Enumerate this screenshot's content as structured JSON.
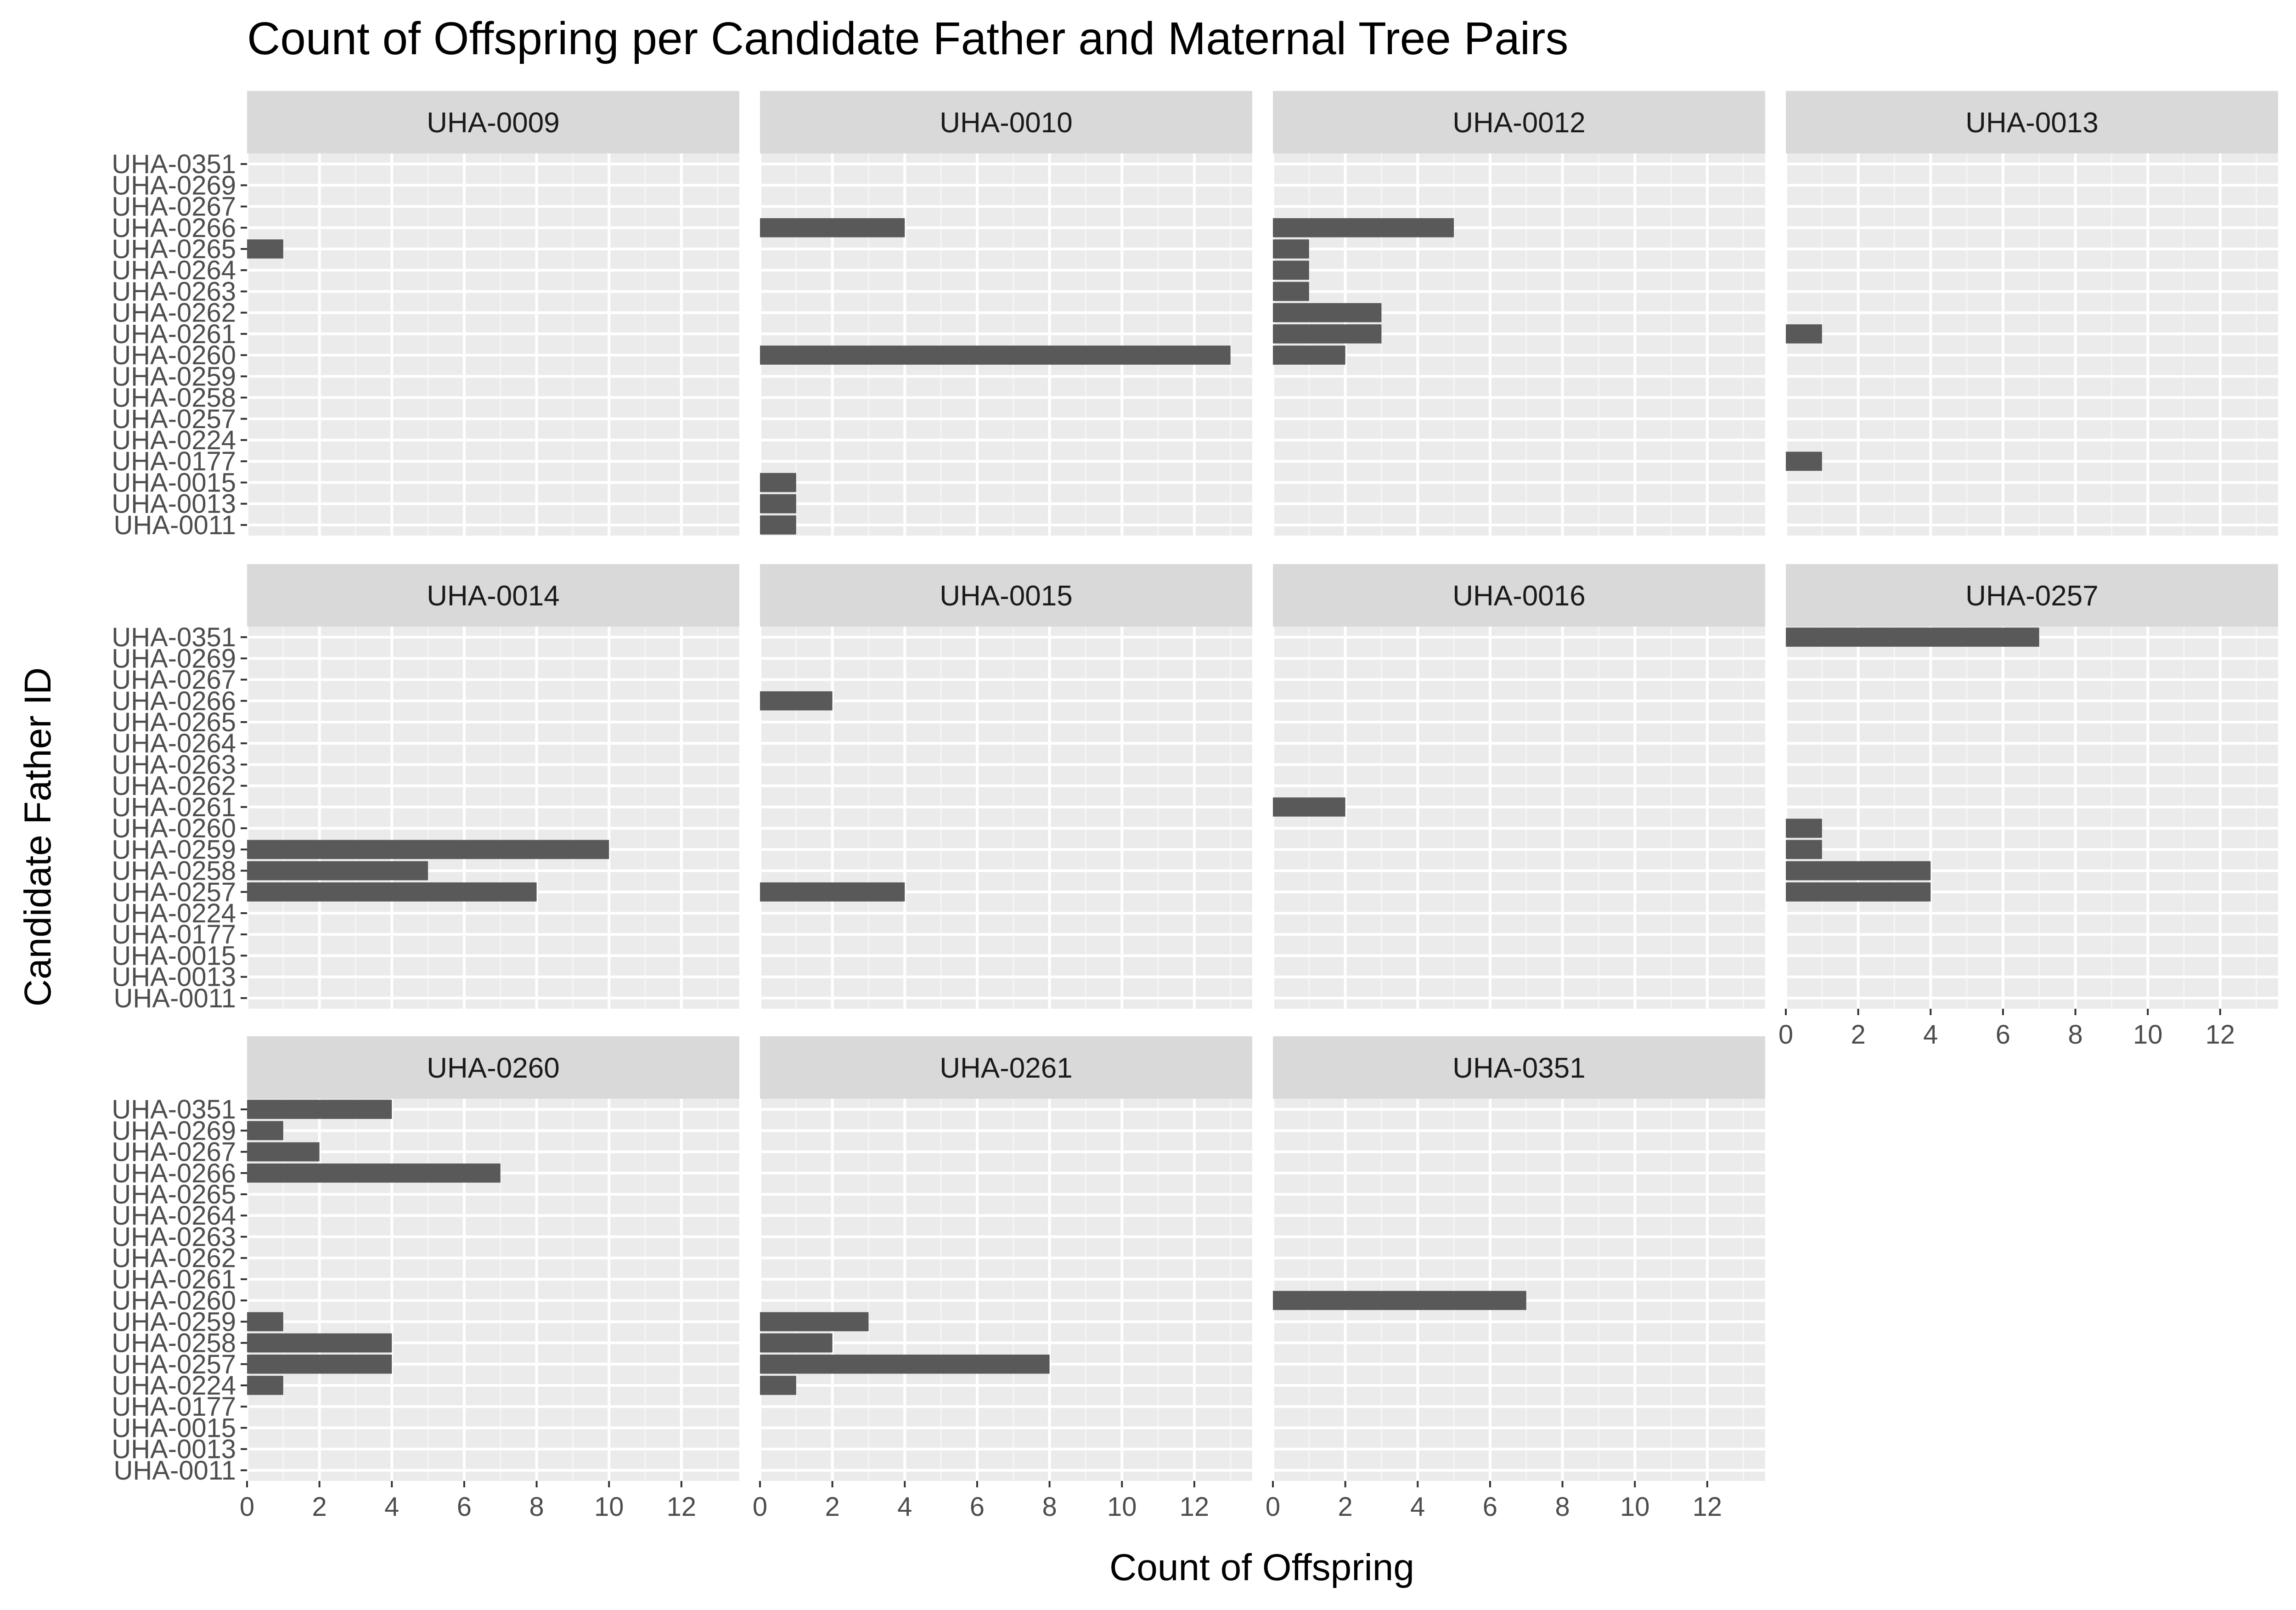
{
  "chart_data": {
    "type": "bar",
    "orientation": "horizontal",
    "title": "Count of Offspring per Candidate Father and Maternal Tree Pairs",
    "xlabel": "Count of Offspring",
    "ylabel": "Candidate Father ID",
    "xlim": [
      0,
      13.6
    ],
    "x_ticks": [
      0,
      2,
      4,
      6,
      8,
      10,
      12
    ],
    "grid": true,
    "categories": [
      "UHA-0011",
      "UHA-0013",
      "UHA-0015",
      "UHA-0177",
      "UHA-0224",
      "UHA-0257",
      "UHA-0258",
      "UHA-0259",
      "UHA-0260",
      "UHA-0261",
      "UHA-0262",
      "UHA-0263",
      "UHA-0264",
      "UHA-0265",
      "UHA-0266",
      "UHA-0267",
      "UHA-0269",
      "UHA-0351"
    ],
    "facets": [
      {
        "name": "UHA-0009",
        "values": {
          "UHA-0265": 1
        }
      },
      {
        "name": "UHA-0010",
        "values": {
          "UHA-0266": 4,
          "UHA-0260": 13,
          "UHA-0015": 1,
          "UHA-0013": 1,
          "UHA-0011": 1
        }
      },
      {
        "name": "UHA-0012",
        "values": {
          "UHA-0266": 5,
          "UHA-0265": 1,
          "UHA-0264": 1,
          "UHA-0263": 1,
          "UHA-0262": 3,
          "UHA-0261": 3,
          "UHA-0260": 2
        }
      },
      {
        "name": "UHA-0013",
        "values": {
          "UHA-0261": 1,
          "UHA-0177": 1
        }
      },
      {
        "name": "UHA-0014",
        "values": {
          "UHA-0259": 10,
          "UHA-0258": 5,
          "UHA-0257": 8
        }
      },
      {
        "name": "UHA-0015",
        "values": {
          "UHA-0266": 2,
          "UHA-0257": 4
        }
      },
      {
        "name": "UHA-0016",
        "values": {
          "UHA-0261": 2
        }
      },
      {
        "name": "UHA-0257",
        "values": {
          "UHA-0351": 7,
          "UHA-0260": 1,
          "UHA-0259": 1,
          "UHA-0258": 4,
          "UHA-0257": 4
        }
      },
      {
        "name": "UHA-0260",
        "values": {
          "UHA-0351": 4,
          "UHA-0269": 1,
          "UHA-0267": 2,
          "UHA-0266": 7,
          "UHA-0259": 1,
          "UHA-0258": 4,
          "UHA-0257": 4,
          "UHA-0224": 1
        }
      },
      {
        "name": "UHA-0261",
        "values": {
          "UHA-0259": 3,
          "UHA-0258": 2,
          "UHA-0257": 8,
          "UHA-0224": 1
        }
      },
      {
        "name": "UHA-0351",
        "values": {
          "UHA-0260": 7
        }
      }
    ]
  },
  "colors": {
    "panel_background": "#ebebeb",
    "grid_major": "#ffffff",
    "grid_minor": "#f5f5f5",
    "strip_background": "#d9d9d9",
    "bar_fill": "#595959",
    "tick_text": "#4d4d4d"
  }
}
